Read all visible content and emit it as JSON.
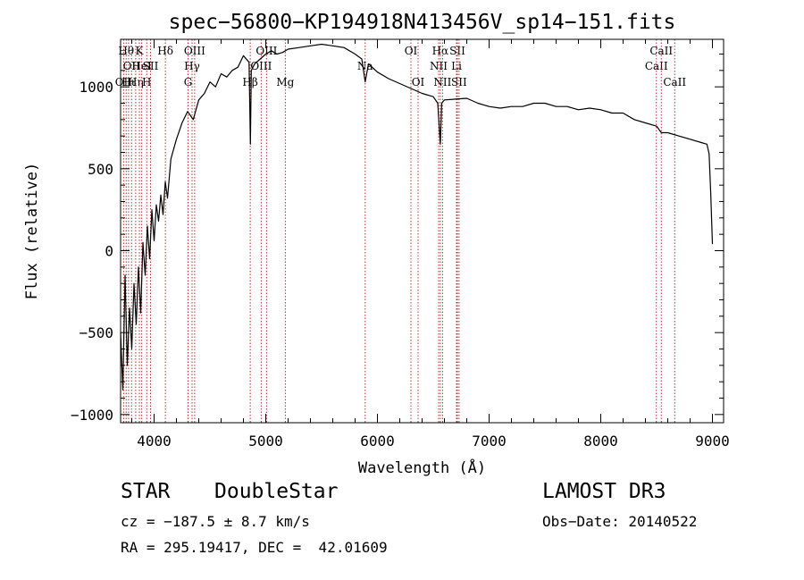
{
  "chart_data": {
    "type": "line",
    "title": "spec−56800−KP194918N413456V_sp14−151.fits",
    "xlabel": "Wavelength (Å)",
    "ylabel": "Flux (relative)",
    "xlim": [
      3700,
      9100
    ],
    "ylim": [
      -1050,
      1290
    ],
    "xticks": [
      {
        "value": 4000,
        "label": "4000"
      },
      {
        "value": 5000,
        "label": "5000"
      },
      {
        "value": 6000,
        "label": "6000"
      },
      {
        "value": 7000,
        "label": "7000"
      },
      {
        "value": 8000,
        "label": "8000"
      },
      {
        "value": 9000,
        "label": "9000"
      }
    ],
    "yticks": [
      {
        "value": 1000,
        "label": "1000"
      },
      {
        "value": 500,
        "label": "500"
      },
      {
        "value": 0,
        "label": "0"
      },
      {
        "value": -500,
        "label": "−500"
      },
      {
        "value": -1000,
        "label": "−1000"
      }
    ],
    "series": [
      {
        "name": "spectrum",
        "x": [
          3700,
          3720,
          3740,
          3760,
          3780,
          3800,
          3820,
          3840,
          3860,
          3880,
          3900,
          3920,
          3940,
          3960,
          3980,
          4000,
          4020,
          4040,
          4060,
          4080,
          4100,
          4120,
          4150,
          4200,
          4250,
          4300,
          4350,
          4400,
          4450,
          4500,
          4550,
          4600,
          4650,
          4700,
          4750,
          4800,
          4850,
          4862,
          4870,
          4900,
          4950,
          5000,
          5050,
          5100,
          5150,
          5200,
          5300,
          5400,
          5500,
          5600,
          5700,
          5800,
          5860,
          5890,
          5920,
          6000,
          6100,
          6200,
          6300,
          6400,
          6500,
          6540,
          6563,
          6575,
          6600,
          6700,
          6800,
          6900,
          7000,
          7100,
          7200,
          7300,
          7400,
          7500,
          7600,
          7700,
          7800,
          7900,
          8000,
          8100,
          8200,
          8300,
          8400,
          8500,
          8542,
          8600,
          8700,
          8800,
          8900,
          8950,
          8970,
          8985,
          9000
        ],
        "y": [
          -500,
          -850,
          -150,
          -700,
          -350,
          -600,
          -200,
          -450,
          -100,
          -380,
          50,
          -150,
          150,
          -50,
          250,
          60,
          280,
          180,
          340,
          220,
          420,
          320,
          560,
          680,
          780,
          850,
          800,
          920,
          960,
          1030,
          1000,
          1080,
          1060,
          1100,
          1120,
          1190,
          1150,
          650,
          1100,
          1140,
          1170,
          1200,
          1220,
          1200,
          1210,
          1230,
          1240,
          1250,
          1260,
          1250,
          1240,
          1200,
          1170,
          1030,
          1140,
          1090,
          1050,
          1020,
          990,
          960,
          940,
          900,
          650,
          900,
          920,
          925,
          930,
          900,
          880,
          870,
          880,
          880,
          900,
          900,
          880,
          880,
          860,
          870,
          860,
          840,
          840,
          800,
          780,
          760,
          720,
          720,
          700,
          680,
          660,
          650,
          590,
          350,
          40
        ]
      }
    ],
    "lines": [
      {
        "wave": 3727,
        "label": "OII",
        "row": 2
      },
      {
        "wave": 3750,
        "label": "Hθ",
        "row": 0
      },
      {
        "wave": 3771,
        "label": "Hι",
        "row": 2
      },
      {
        "wave": 3798,
        "label": "OII",
        "row": 1
      },
      {
        "wave": 3835,
        "label": "Hη",
        "row": 2
      },
      {
        "wave": 3868,
        "label": "K",
        "row": 0
      },
      {
        "wave": 3889,
        "label": "HeI",
        "row": 1
      },
      {
        "wave": 3934,
        "label": "H",
        "row": 2
      },
      {
        "wave": 3968,
        "label": "SII",
        "row": 1
      },
      {
        "wave": 4101,
        "label": "Hδ",
        "row": 0
      },
      {
        "wave": 4304,
        "label": "G",
        "row": 2
      },
      {
        "wave": 4340,
        "label": "Hγ",
        "row": 1
      },
      {
        "wave": 4363,
        "label": "OIII",
        "row": 0
      },
      {
        "wave": 4861,
        "label": "Hβ",
        "row": 2
      },
      {
        "wave": 4959,
        "label": "OIII",
        "row": 1
      },
      {
        "wave": 5007,
        "label": "OIII",
        "row": 0
      },
      {
        "wave": 5175,
        "label": "Mg",
        "row": 2
      },
      {
        "wave": 5890,
        "label": "Na",
        "row": 1
      },
      {
        "wave": 6300,
        "label": "OI",
        "row": 0
      },
      {
        "wave": 6364,
        "label": "OI",
        "row": 2
      },
      {
        "wave": 6548,
        "label": "NII",
        "row": 1
      },
      {
        "wave": 6563,
        "label": "Hα",
        "row": 0
      },
      {
        "wave": 6583,
        "label": "NII",
        "row": 2
      },
      {
        "wave": 6708,
        "label": "Li",
        "row": 1
      },
      {
        "wave": 6716,
        "label": "SII",
        "row": 0
      },
      {
        "wave": 6731,
        "label": "SII",
        "row": 2
      },
      {
        "wave": 8498,
        "label": "CaII",
        "row": 1
      },
      {
        "wave": 8542,
        "label": "CaII",
        "row": 0
      },
      {
        "wave": 8662,
        "label": "CaII",
        "row": 2
      }
    ],
    "line_color": "#b03030"
  },
  "info": {
    "class": "STAR",
    "subclass": "DoubleStar",
    "survey": "LAMOST DR3",
    "cz": "cz = −187.5 ± 8.7 km/s",
    "obs_date": "Obs−Date: 20140522",
    "coords": "RA = 295.19417, DEC =  42.01609"
  }
}
